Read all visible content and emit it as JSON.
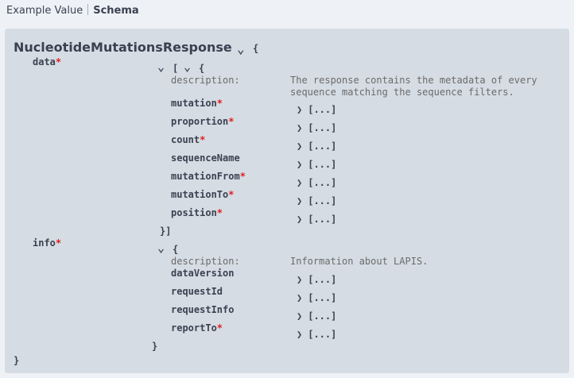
{
  "tabs": [
    {
      "label": "Example Value"
    },
    {
      "label": "Schema"
    }
  ],
  "schema": {
    "title": "NucleotideMutationsResponse",
    "open_brace": "{",
    "close_brace": "}",
    "data": {
      "name": "data",
      "required": "*",
      "open": "[ ",
      "open2": "{",
      "close": "}]",
      "description_label": "description:",
      "description_lines": [
        "The response contains the metadata of every",
        "sequence matching the sequence filters."
      ],
      "props": [
        {
          "name": "mutation",
          "required": true
        },
        {
          "name": "proportion",
          "required": true
        },
        {
          "name": "count",
          "required": true
        },
        {
          "name": "sequenceName",
          "required": false
        },
        {
          "name": "mutationFrom",
          "required": true
        },
        {
          "name": "mutationTo",
          "required": true
        },
        {
          "name": "position",
          "required": true
        }
      ]
    },
    "info": {
      "name": "info",
      "required": "*",
      "open": "{",
      "close": "}",
      "description_label": "description:",
      "description": "Information about LAPIS.",
      "props": [
        {
          "name": "dataVersion",
          "required": false
        },
        {
          "name": "requestId",
          "required": false
        },
        {
          "name": "requestInfo",
          "required": false
        },
        {
          "name": "reportTo",
          "required": true
        }
      ]
    },
    "collapsed": "[...]",
    "icons": {
      "expanded": "chevron-down-icon",
      "collapsed": "chevron-right-icon"
    }
  }
}
